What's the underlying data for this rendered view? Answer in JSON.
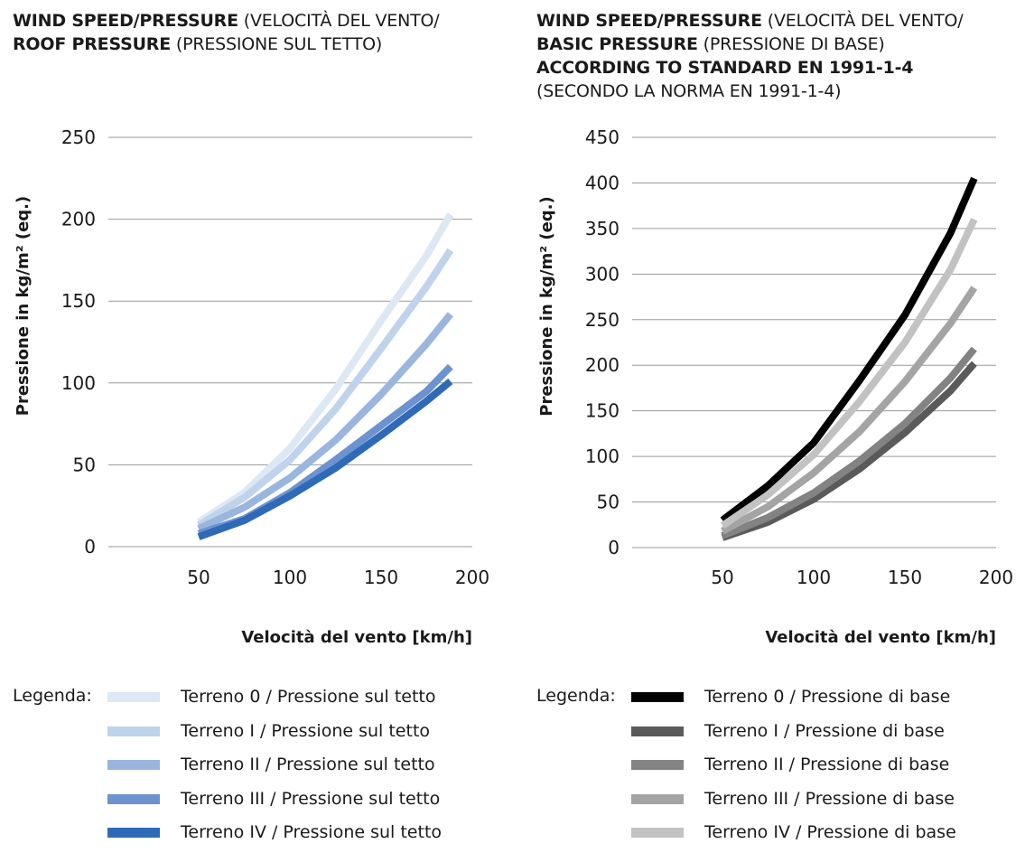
{
  "chart_data": [
    {
      "type": "line",
      "title_bold_1": "WIND SPEED/PRESSURE",
      "title_normal_1": "(VELOCITÀ DEL VENTO/",
      "title_bold_2": "ROOF PRESSURE",
      "title_normal_2": "(PRESSIONE SUL TETTO)",
      "xlabel": "Velocità del vento [km/h]",
      "ylabel": "Pressione in kg/m² (eq.)",
      "xlim": [
        0,
        200
      ],
      "ylim": [
        0,
        250
      ],
      "xticks": [
        50,
        100,
        150,
        200
      ],
      "yticks": [
        0,
        50,
        100,
        150,
        200,
        250
      ],
      "grid": true,
      "legend_title": "Legenda:",
      "x": [
        50,
        75,
        100,
        125,
        150,
        175,
        188
      ],
      "series": [
        {
          "name": "Terreno 0 / Pressione sul tetto",
          "color": "#dde8f5",
          "values": [
            15,
            33,
            60,
            96,
            138,
            178,
            203
          ]
        },
        {
          "name": "Terreno I / Pressione sul tetto",
          "color": "#bfd3ec",
          "values": [
            13,
            30,
            53,
            84,
            121,
            159,
            181
          ]
        },
        {
          "name": "Terreno II / Pressione sul tetto",
          "color": "#9ab6de",
          "values": [
            11,
            24,
            42,
            65,
            93,
            124,
            142
          ]
        },
        {
          "name": "Terreno III / Pressione sul tetto",
          "color": "#6c93cf",
          "values": [
            8,
            17,
            33,
            53,
            74,
            95,
            110
          ]
        },
        {
          "name": "Terreno IV / Pressione sul tetto",
          "color": "#2f6ab8",
          "values": [
            6,
            16,
            31,
            48,
            68,
            89,
            101
          ]
        }
      ]
    },
    {
      "type": "line",
      "title_bold_1": "WIND SPEED/PRESSURE",
      "title_normal_1": "(VELOCITÀ DEL VENTO/",
      "title_bold_2": "BASIC PRESSURE",
      "title_normal_2": "(PRESSIONE DI BASE)",
      "title_bold_3": "ACCORDING TO STANDARD EN 1991-1-4",
      "title_normal_3": "(SECONDO LA NORMA EN 1991-1-4)",
      "xlabel": "Velocità del vento [km/h]",
      "ylabel": "Pressione in kg/m² (eq.)",
      "xlim": [
        0,
        200
      ],
      "ylim": [
        0,
        450
      ],
      "xticks": [
        50,
        100,
        150,
        200
      ],
      "yticks": [
        0,
        50,
        100,
        150,
        200,
        250,
        300,
        350,
        400,
        450
      ],
      "grid": true,
      "legend_title": "Legenda:",
      "x": [
        50,
        75,
        100,
        125,
        150,
        175,
        188
      ],
      "series": [
        {
          "name": "Terreno 0 / Pressione di base",
          "color": "#000000",
          "values": [
            30,
            68,
            115,
            183,
            255,
            345,
            405
          ]
        },
        {
          "name": "Terreno I / Pressione di base",
          "color": "#5a5a5a",
          "values": [
            11,
            28,
            53,
            86,
            126,
            172,
            202
          ]
        },
        {
          "name": "Terreno II / Pressione di base",
          "color": "#838383",
          "values": [
            13,
            33,
            60,
            95,
            136,
            186,
            218
          ]
        },
        {
          "name": "Terreno III / Pressione di base",
          "color": "#a4a4a4",
          "values": [
            18,
            45,
            82,
            127,
            182,
            246,
            285
          ]
        },
        {
          "name": "Terreno IV / Pressione di base",
          "color": "#c2c2c2",
          "values": [
            24,
            58,
            102,
            160,
            225,
            305,
            360
          ]
        }
      ]
    }
  ]
}
